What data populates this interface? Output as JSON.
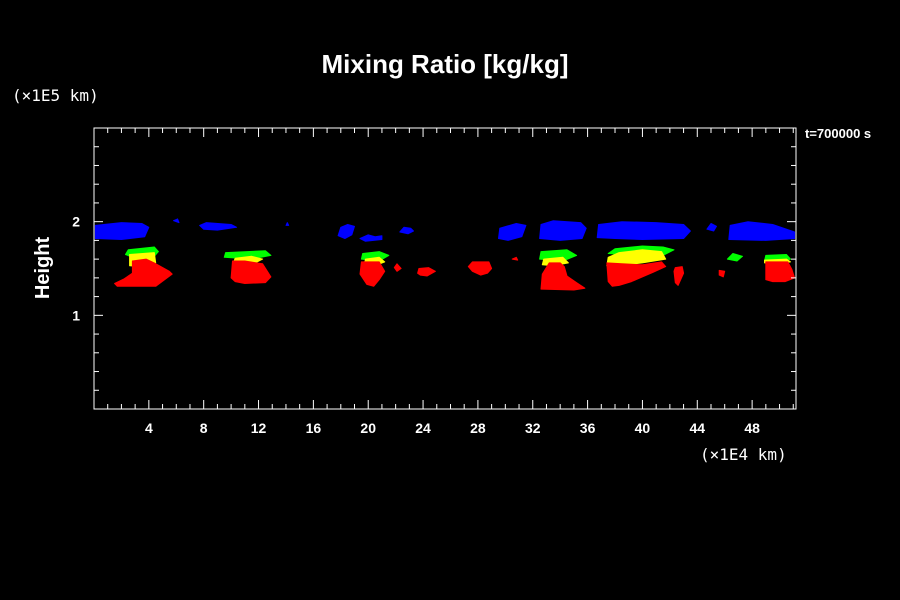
{
  "chart_data": {
    "type": "heatmap",
    "title": "Mixing Ratio [kg/kg]",
    "ylabel": "Height",
    "x_unit": "(×1E4 km)",
    "y_unit": "(×1E5 km)",
    "time_label": "t=700000 s",
    "xlim": [
      0,
      51.2
    ],
    "ylim": [
      0,
      3
    ],
    "x_ticks": [
      "4",
      "8",
      "12",
      "16",
      "20",
      "24",
      "28",
      "32",
      "36",
      "40",
      "44",
      "48"
    ],
    "y_ticks": [
      "1",
      "2"
    ],
    "colors": {
      "blue": "#0000ff",
      "green": "#00ff00",
      "yellow": "#ffff00",
      "red": "#ff0000",
      "background": "#000000",
      "axes": "#ffffff"
    },
    "regions": [
      {
        "color": "blue",
        "points": [
          [
            0.1,
            1.82
          ],
          [
            0.1,
            1.96
          ],
          [
            2,
            1.99
          ],
          [
            3.5,
            1.98
          ],
          [
            4,
            1.94
          ],
          [
            3.7,
            1.84
          ],
          [
            2,
            1.81
          ]
        ]
      },
      {
        "color": "blue",
        "points": [
          [
            5.8,
            2.01
          ],
          [
            6.1,
            2.03
          ],
          [
            6.2,
            1.99
          ]
        ]
      },
      {
        "color": "blue",
        "points": [
          [
            7.7,
            1.96
          ],
          [
            8.2,
            1.99
          ],
          [
            10,
            1.97
          ],
          [
            10.4,
            1.94
          ],
          [
            9,
            1.91
          ],
          [
            8,
            1.92
          ]
        ]
      },
      {
        "color": "blue",
        "points": [
          [
            14,
            1.96
          ],
          [
            14.1,
            1.99
          ],
          [
            14.2,
            1.96
          ]
        ]
      },
      {
        "color": "blue",
        "points": [
          [
            17.8,
            1.85
          ],
          [
            18,
            1.94
          ],
          [
            18.5,
            1.97
          ],
          [
            19,
            1.95
          ],
          [
            18.8,
            1.86
          ],
          [
            18.3,
            1.82
          ]
        ]
      },
      {
        "color": "blue",
        "points": [
          [
            19.4,
            1.82
          ],
          [
            20,
            1.86
          ],
          [
            20.5,
            1.84
          ],
          [
            21,
            1.85
          ],
          [
            21,
            1.81
          ],
          [
            19.8,
            1.79
          ]
        ]
      },
      {
        "color": "blue",
        "points": [
          [
            22.3,
            1.89
          ],
          [
            22.6,
            1.94
          ],
          [
            23.1,
            1.93
          ],
          [
            23.3,
            1.9
          ],
          [
            22.9,
            1.87
          ]
        ]
      },
      {
        "color": "blue",
        "points": [
          [
            29.5,
            1.82
          ],
          [
            29.6,
            1.93
          ],
          [
            30.8,
            1.98
          ],
          [
            31.5,
            1.96
          ],
          [
            31.2,
            1.84
          ],
          [
            30.2,
            1.8
          ]
        ]
      },
      {
        "color": "blue",
        "points": [
          [
            32.5,
            1.82
          ],
          [
            32.6,
            1.97
          ],
          [
            33.5,
            2.01
          ],
          [
            35.5,
            1.99
          ],
          [
            35.9,
            1.93
          ],
          [
            35.6,
            1.82
          ],
          [
            34,
            1.8
          ]
        ]
      },
      {
        "color": "blue",
        "points": [
          [
            36.7,
            1.83
          ],
          [
            36.8,
            1.97
          ],
          [
            38.5,
            2.0
          ],
          [
            41,
            1.99
          ],
          [
            43,
            1.97
          ],
          [
            43.5,
            1.9
          ],
          [
            43,
            1.82
          ],
          [
            40,
            1.81
          ],
          [
            38,
            1.82
          ]
        ]
      },
      {
        "color": "blue",
        "points": [
          [
            44.7,
            1.92
          ],
          [
            45,
            1.98
          ],
          [
            45.4,
            1.95
          ],
          [
            45.2,
            1.9
          ]
        ]
      },
      {
        "color": "blue",
        "points": [
          [
            46.3,
            1.81
          ],
          [
            46.4,
            1.96
          ],
          [
            47.7,
            2.0
          ],
          [
            49.5,
            1.97
          ],
          [
            51.1,
            1.89
          ],
          [
            51.1,
            1.82
          ],
          [
            49,
            1.8
          ]
        ]
      },
      {
        "color": "green",
        "points": [
          [
            2.3,
            1.65
          ],
          [
            2.5,
            1.7
          ],
          [
            4.4,
            1.73
          ],
          [
            4.7,
            1.68
          ],
          [
            4.4,
            1.63
          ],
          [
            2.8,
            1.62
          ]
        ]
      },
      {
        "color": "yellow",
        "points": [
          [
            2.6,
            1.53
          ],
          [
            2.6,
            1.65
          ],
          [
            4.4,
            1.67
          ],
          [
            4.5,
            1.56
          ],
          [
            3.5,
            1.52
          ]
        ]
      },
      {
        "color": "green",
        "points": [
          [
            9.5,
            1.62
          ],
          [
            9.6,
            1.67
          ],
          [
            12.5,
            1.69
          ],
          [
            12.9,
            1.64
          ],
          [
            11.5,
            1.6
          ]
        ]
      },
      {
        "color": "yellow",
        "points": [
          [
            10.1,
            1.54
          ],
          [
            10.3,
            1.61
          ],
          [
            11.5,
            1.63
          ],
          [
            12.3,
            1.6
          ],
          [
            11.5,
            1.54
          ]
        ]
      },
      {
        "color": "green",
        "points": [
          [
            19.5,
            1.6
          ],
          [
            19.6,
            1.66
          ],
          [
            20.8,
            1.68
          ],
          [
            21.5,
            1.64
          ],
          [
            20.8,
            1.58
          ]
        ]
      },
      {
        "color": "yellow",
        "points": [
          [
            19.7,
            1.54
          ],
          [
            19.8,
            1.6
          ],
          [
            20.8,
            1.62
          ],
          [
            21.2,
            1.57
          ],
          [
            20.5,
            1.53
          ]
        ]
      },
      {
        "color": "green",
        "points": [
          [
            32.5,
            1.6
          ],
          [
            32.6,
            1.68
          ],
          [
            34.5,
            1.7
          ],
          [
            35.2,
            1.64
          ],
          [
            34.2,
            1.58
          ]
        ]
      },
      {
        "color": "yellow",
        "points": [
          [
            32.7,
            1.54
          ],
          [
            32.8,
            1.6
          ],
          [
            34.2,
            1.62
          ],
          [
            34.6,
            1.56
          ],
          [
            33.5,
            1.53
          ]
        ]
      },
      {
        "color": "green",
        "points": [
          [
            37.5,
            1.66
          ],
          [
            38,
            1.71
          ],
          [
            40,
            1.74
          ],
          [
            41.5,
            1.73
          ],
          [
            42.3,
            1.7
          ],
          [
            41.5,
            1.64
          ],
          [
            39.5,
            1.64
          ]
        ]
      },
      {
        "color": "yellow",
        "points": [
          [
            37.4,
            1.53
          ],
          [
            37.5,
            1.62
          ],
          [
            38.3,
            1.67
          ],
          [
            40,
            1.7
          ],
          [
            41.4,
            1.68
          ],
          [
            41.7,
            1.6
          ],
          [
            40,
            1.56
          ],
          [
            38.2,
            1.53
          ]
        ]
      },
      {
        "color": "green",
        "points": [
          [
            46.2,
            1.6
          ],
          [
            46.6,
            1.66
          ],
          [
            47.3,
            1.63
          ],
          [
            46.9,
            1.58
          ]
        ]
      },
      {
        "color": "green",
        "points": [
          [
            48.9,
            1.58
          ],
          [
            49,
            1.64
          ],
          [
            50.5,
            1.65
          ],
          [
            50.8,
            1.6
          ],
          [
            49.9,
            1.56
          ]
        ]
      },
      {
        "color": "yellow",
        "points": [
          [
            48.9,
            1.56
          ],
          [
            48.9,
            1.59
          ],
          [
            50.5,
            1.6
          ],
          [
            50.8,
            1.57
          ],
          [
            49.9,
            1.55
          ]
        ]
      },
      {
        "color": "red",
        "points": [
          [
            1.5,
            1.34
          ],
          [
            1.7,
            1.31
          ],
          [
            4.5,
            1.31
          ],
          [
            5.7,
            1.44
          ],
          [
            5.5,
            1.47
          ],
          [
            4.4,
            1.56
          ],
          [
            3.8,
            1.6
          ],
          [
            2.8,
            1.58
          ],
          [
            2.8,
            1.45
          ],
          [
            2.2,
            1.39
          ]
        ]
      },
      {
        "color": "red",
        "points": [
          [
            10,
            1.4
          ],
          [
            10.1,
            1.58
          ],
          [
            11,
            1.58
          ],
          [
            12.3,
            1.55
          ],
          [
            12.6,
            1.48
          ],
          [
            12.9,
            1.41
          ],
          [
            12.5,
            1.35
          ],
          [
            11,
            1.34
          ],
          [
            10.3,
            1.36
          ]
        ]
      },
      {
        "color": "red",
        "points": [
          [
            19.4,
            1.44
          ],
          [
            19.5,
            1.57
          ],
          [
            20.8,
            1.57
          ],
          [
            21.2,
            1.47
          ],
          [
            20.8,
            1.38
          ],
          [
            20.4,
            1.31
          ],
          [
            19.9,
            1.33
          ]
        ]
      },
      {
        "color": "red",
        "points": [
          [
            21.9,
            1.51
          ],
          [
            22.1,
            1.55
          ],
          [
            22.4,
            1.5
          ],
          [
            22.1,
            1.47
          ]
        ]
      },
      {
        "color": "red",
        "points": [
          [
            23.6,
            1.45
          ],
          [
            23.7,
            1.5
          ],
          [
            24.4,
            1.51
          ],
          [
            24.9,
            1.47
          ],
          [
            24.3,
            1.42
          ],
          [
            23.8,
            1.43
          ]
        ]
      },
      {
        "color": "red",
        "points": [
          [
            27.3,
            1.52
          ],
          [
            27.6,
            1.57
          ],
          [
            28.8,
            1.57
          ],
          [
            29,
            1.5
          ],
          [
            28.7,
            1.45
          ],
          [
            28.2,
            1.43
          ],
          [
            27.6,
            1.47
          ]
        ]
      },
      {
        "color": "red",
        "points": [
          [
            30.5,
            1.6
          ],
          [
            30.8,
            1.62
          ],
          [
            30.9,
            1.59
          ]
        ]
      },
      {
        "color": "red",
        "points": [
          [
            32.6,
            1.28
          ],
          [
            32.7,
            1.44
          ],
          [
            33.2,
            1.56
          ],
          [
            34,
            1.56
          ],
          [
            34.3,
            1.52
          ],
          [
            34.5,
            1.42
          ],
          [
            35.2,
            1.35
          ],
          [
            35.8,
            1.29
          ],
          [
            35,
            1.27
          ]
        ]
      },
      {
        "color": "red",
        "points": [
          [
            37.5,
            1.36
          ],
          [
            37.4,
            1.56
          ],
          [
            38.5,
            1.55
          ],
          [
            40,
            1.54
          ],
          [
            41.4,
            1.57
          ],
          [
            41.7,
            1.52
          ],
          [
            40.8,
            1.46
          ],
          [
            39.2,
            1.36
          ],
          [
            38.3,
            1.32
          ],
          [
            37.8,
            1.31
          ]
        ]
      },
      {
        "color": "red",
        "points": [
          [
            42.3,
            1.47
          ],
          [
            42.4,
            1.51
          ],
          [
            42.9,
            1.52
          ],
          [
            43,
            1.45
          ],
          [
            42.6,
            1.32
          ],
          [
            42.4,
            1.35
          ]
        ]
      },
      {
        "color": "red",
        "points": [
          [
            45.6,
            1.43
          ],
          [
            45.6,
            1.48
          ],
          [
            46,
            1.47
          ],
          [
            45.9,
            1.41
          ]
        ]
      },
      {
        "color": "red",
        "points": [
          [
            49,
            1.38
          ],
          [
            49,
            1.57
          ],
          [
            50.6,
            1.57
          ],
          [
            50.9,
            1.49
          ],
          [
            51.1,
            1.4
          ],
          [
            50.4,
            1.36
          ],
          [
            49.5,
            1.36
          ]
        ]
      }
    ]
  }
}
